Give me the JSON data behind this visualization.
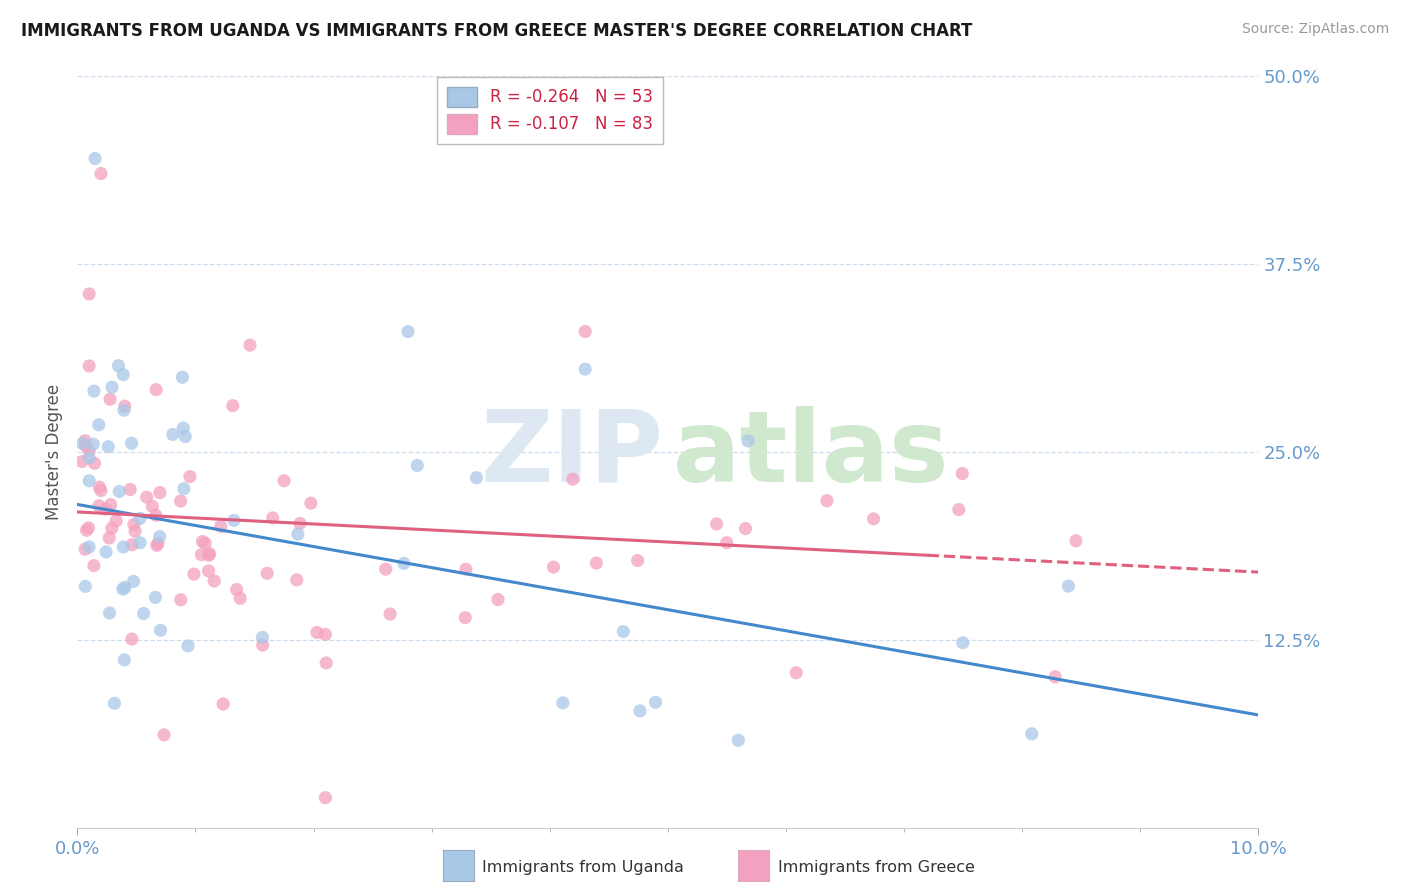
{
  "title": "IMMIGRANTS FROM UGANDA VS IMMIGRANTS FROM GREECE MASTER'S DEGREE CORRELATION CHART",
  "source": "Source: ZipAtlas.com",
  "ylabel": "Master's Degree",
  "color_uganda": "#A8C8E8",
  "color_greece": "#F4A0C0",
  "color_uganda_line": "#4488CC",
  "color_greece_line": "#E06080",
  "color_tick": "#6699CC",
  "legend_label1": "Immigrants from Uganda",
  "legend_label2": "Immigrants from Greece",
  "legend_r1": "R = -0.264   N = 53",
  "legend_r2": "R = -0.107   N = 83",
  "xlim": [
    0.0,
    0.1
  ],
  "ylim": [
    0.0,
    0.5
  ],
  "yticks": [
    0.0,
    0.125,
    0.25,
    0.375,
    0.5
  ],
  "ytick_labels": [
    "",
    "12.5%",
    "25.0%",
    "37.5%",
    "50.0%"
  ],
  "xtick_labels": [
    "0.0%",
    "10.0%"
  ],
  "uganda_line": [
    0.215,
    0.075
  ],
  "greece_line": [
    0.21,
    0.17
  ],
  "grid_color": "#CCDDEE",
  "title_fontsize": 12,
  "source_fontsize": 10,
  "tick_fontsize": 13,
  "legend_fontsize": 12,
  "marker_size": 90
}
